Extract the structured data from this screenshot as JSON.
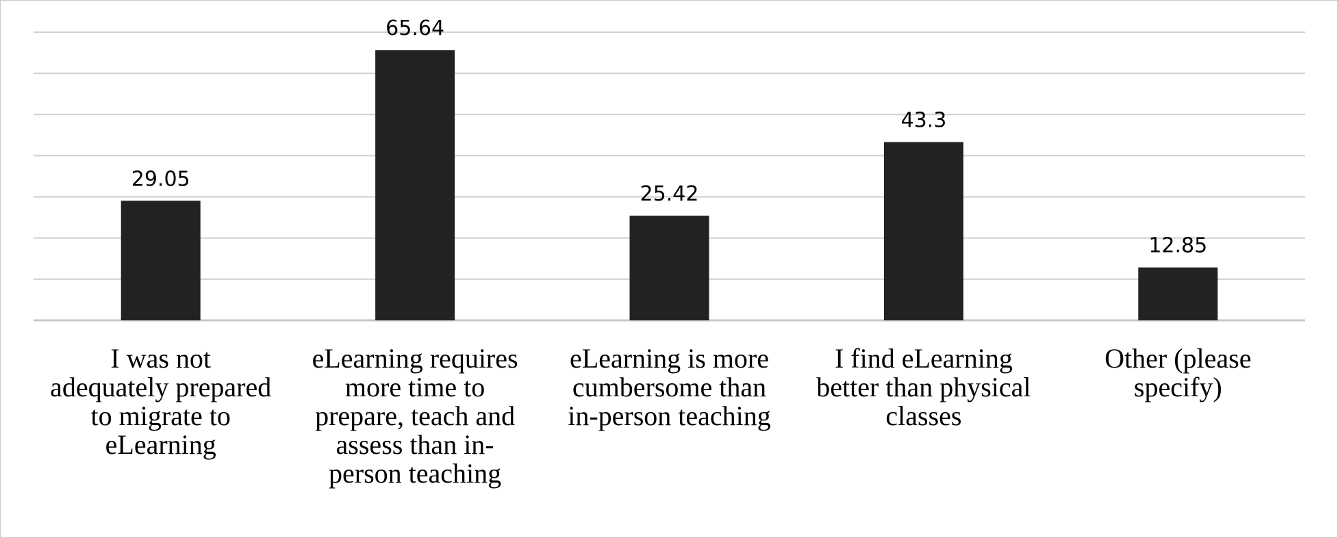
{
  "chart_data": {
    "type": "bar",
    "categories": [
      [
        "I was not",
        "adequately prepared",
        "to migrate to",
        "eLearning"
      ],
      [
        "eLearning requires",
        "more time to",
        "prepare, teach and",
        "assess than in-",
        "person teaching"
      ],
      [
        "eLearning is more",
        "cumbersome than",
        "in-person teaching"
      ],
      [
        "I find eLearning",
        "better than physical",
        "classes"
      ],
      [
        "Other (please",
        "specify)"
      ]
    ],
    "values": [
      29.05,
      65.64,
      25.42,
      43.3,
      12.85
    ],
    "value_labels": [
      "29.05",
      "65.64",
      "25.42",
      "43.3",
      "12.85"
    ],
    "ylim": [
      0,
      70
    ],
    "gridline_step": 10,
    "grid": true,
    "bar_color": "#222222",
    "grid_color": "#d0d0d0",
    "axis_color": "#c8c8c8"
  }
}
